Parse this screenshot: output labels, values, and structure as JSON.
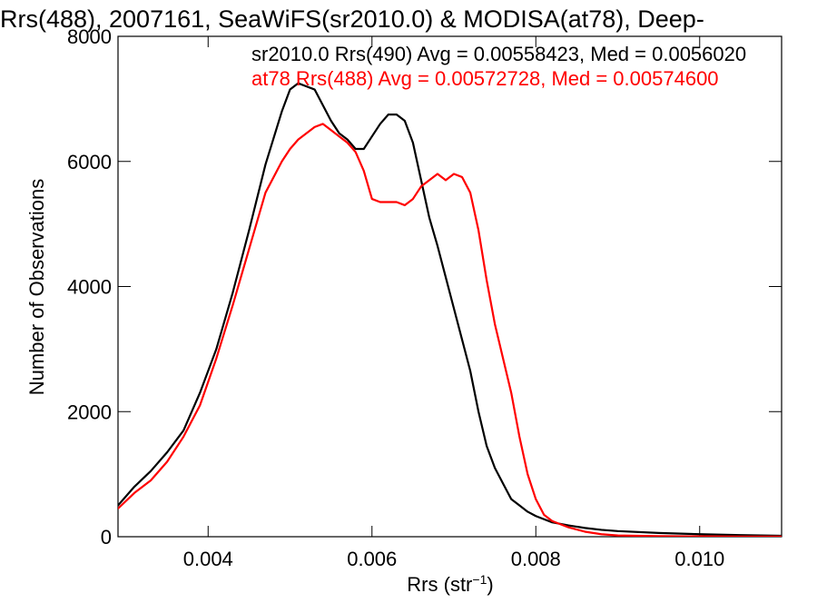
{
  "chart_data": {
    "type": "line",
    "title": "Rrs(488), 2007161, SeaWiFS(sr2010.0) & MODISA(at78), Deep-",
    "xlabel_main": "Rrs (str",
    "xlabel_sup": "−1",
    "xlabel_close": ")",
    "ylabel": "Number of Observations",
    "xlim": [
      0.0029,
      0.011
    ],
    "ylim": [
      0,
      8000
    ],
    "x_ticks": [
      0.004,
      0.006,
      0.008,
      0.01
    ],
    "x_tick_labels": [
      "0.004",
      "0.006",
      "0.008",
      "0.010"
    ],
    "y_ticks": [
      0,
      2000,
      4000,
      6000,
      8000
    ],
    "y_tick_labels": [
      "0",
      "2000",
      "4000",
      "6000",
      "8000"
    ],
    "grid": false,
    "legend_position": "top-right",
    "series": [
      {
        "name": "sr2010.0 Rrs(490) Avg = 0.00558423, Med = 0.0056020",
        "color": "#000000",
        "x": [
          0.0029,
          0.0031,
          0.0033,
          0.0035,
          0.0037,
          0.0039,
          0.0041,
          0.0043,
          0.0045,
          0.0047,
          0.0049,
          0.005,
          0.0051,
          0.0052,
          0.0053,
          0.0054,
          0.0055,
          0.0056,
          0.0057,
          0.0058,
          0.0059,
          0.006,
          0.0061,
          0.0062,
          0.0063,
          0.0064,
          0.0065,
          0.0066,
          0.0067,
          0.0068,
          0.0069,
          0.007,
          0.0071,
          0.0072,
          0.0073,
          0.0074,
          0.0075,
          0.0076,
          0.0077,
          0.0078,
          0.0079,
          0.008,
          0.0081,
          0.0082,
          0.0084,
          0.0086,
          0.0088,
          0.009,
          0.0095,
          0.01,
          0.0105,
          0.011
        ],
        "y": [
          500,
          800,
          1050,
          1350,
          1700,
          2300,
          3000,
          3900,
          4900,
          5950,
          6800,
          7150,
          7250,
          7200,
          7150,
          6900,
          6650,
          6450,
          6350,
          6200,
          6200,
          6400,
          6600,
          6750,
          6750,
          6650,
          6300,
          5700,
          5100,
          4650,
          4150,
          3650,
          3150,
          2650,
          2000,
          1450,
          1100,
          850,
          600,
          500,
          400,
          330,
          280,
          230,
          180,
          140,
          110,
          90,
          60,
          40,
          25,
          15
        ]
      },
      {
        "name": "at78 Rrs(488) Avg = 0.00572728, Med = 0.00574600",
        "color": "#ff0000",
        "x": [
          0.0029,
          0.0031,
          0.0033,
          0.0035,
          0.0037,
          0.0039,
          0.0041,
          0.0043,
          0.0045,
          0.0047,
          0.0049,
          0.005,
          0.0051,
          0.0052,
          0.0053,
          0.0054,
          0.0055,
          0.0056,
          0.0057,
          0.0058,
          0.0059,
          0.006,
          0.0061,
          0.0062,
          0.0063,
          0.0064,
          0.0065,
          0.0066,
          0.0067,
          0.0068,
          0.0069,
          0.007,
          0.0071,
          0.0072,
          0.0073,
          0.0074,
          0.0075,
          0.0076,
          0.0077,
          0.0078,
          0.0079,
          0.008,
          0.0081,
          0.0082,
          0.0083,
          0.0084,
          0.0086,
          0.0088,
          0.009,
          0.0095,
          0.01,
          0.0105,
          0.011
        ],
        "y": [
          450,
          700,
          900,
          1200,
          1600,
          2100,
          2850,
          3700,
          4600,
          5500,
          6000,
          6200,
          6350,
          6450,
          6550,
          6600,
          6500,
          6400,
          6300,
          6150,
          5850,
          5400,
          5350,
          5350,
          5350,
          5300,
          5400,
          5600,
          5700,
          5800,
          5700,
          5800,
          5750,
          5500,
          4900,
          4100,
          3400,
          2850,
          2300,
          1600,
          1000,
          600,
          350,
          250,
          200,
          150,
          80,
          40,
          20,
          10,
          5,
          3,
          2
        ]
      }
    ]
  }
}
